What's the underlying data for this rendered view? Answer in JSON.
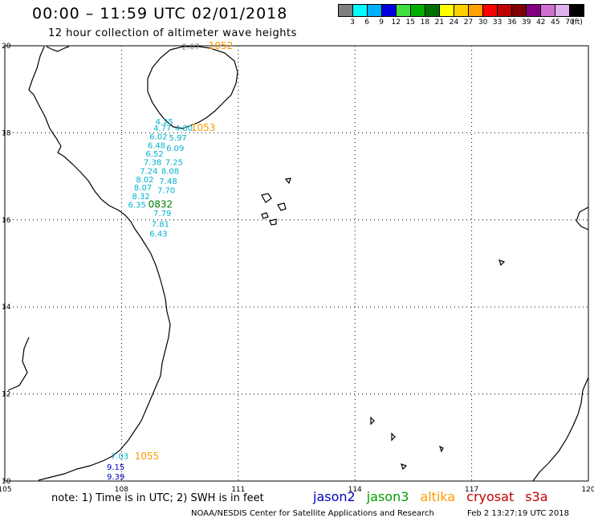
{
  "header": {
    "title": "00:00 – 11:59 UTC 02/01/2018",
    "subtitle": "12 hour collection of altimeter wave heights"
  },
  "legend": {
    "colors": [
      "#808080",
      "#00ffff",
      "#00b0ff",
      "#0000e0",
      "#40e040",
      "#00b000",
      "#007000",
      "#ffff00",
      "#ffd000",
      "#ffa000",
      "#ff0000",
      "#c00000",
      "#800000",
      "#800080",
      "#d070d0",
      "#e0b0f0",
      "#000000"
    ],
    "labels": [
      "3",
      "6",
      "9",
      "12",
      "15",
      "18",
      "21",
      "24",
      "27",
      "30",
      "33",
      "36",
      "39",
      "42",
      "45",
      "70",
      "(ft)"
    ]
  },
  "map": {
    "lon_ticks": [
      "105",
      "108",
      "111",
      "114",
      "117",
      "120"
    ],
    "lat_ticks": [
      "20",
      "18",
      "16",
      "14",
      "12",
      "10"
    ],
    "lon_range": [
      105,
      120
    ],
    "lat_range": [
      10,
      20
    ],
    "points": [
      {
        "t": "2.07",
        "lon": 109.78,
        "lat": 19.92,
        "color": "#808080"
      },
      {
        "t": "4.25",
        "lon": 109.1,
        "lat": 18.19,
        "color": "#00b0d0"
      },
      {
        "t": "4.77",
        "lon": 109.05,
        "lat": 18.04,
        "color": "#00b0d0"
      },
      {
        "t": "4.80",
        "lon": 109.6,
        "lat": 18.04,
        "color": "#00b0d0"
      },
      {
        "t": "6.02",
        "lon": 108.95,
        "lat": 17.85,
        "color": "#00b0d0"
      },
      {
        "t": "5.97",
        "lon": 109.45,
        "lat": 17.82,
        "color": "#00b0d0"
      },
      {
        "t": "6.48",
        "lon": 108.9,
        "lat": 17.65,
        "color": "#00b0d0"
      },
      {
        "t": "6.09",
        "lon": 109.38,
        "lat": 17.58,
        "color": "#00b0d0"
      },
      {
        "t": "6.52",
        "lon": 108.85,
        "lat": 17.45,
        "color": "#00b0d0"
      },
      {
        "t": "7.38",
        "lon": 108.8,
        "lat": 17.26,
        "color": "#00b0d0"
      },
      {
        "t": "7.25",
        "lon": 109.35,
        "lat": 17.26,
        "color": "#00b0d0"
      },
      {
        "t": "7.24",
        "lon": 108.7,
        "lat": 17.06,
        "color": "#00b0d0"
      },
      {
        "t": "8.08",
        "lon": 109.25,
        "lat": 17.06,
        "color": "#00b0d0"
      },
      {
        "t": "8.02",
        "lon": 108.6,
        "lat": 16.86,
        "color": "#00b0d0"
      },
      {
        "t": "7.48",
        "lon": 109.2,
        "lat": 16.83,
        "color": "#00b0d0"
      },
      {
        "t": "8.07",
        "lon": 108.55,
        "lat": 16.68,
        "color": "#00b0d0"
      },
      {
        "t": "7.70",
        "lon": 109.15,
        "lat": 16.61,
        "color": "#00b0d0"
      },
      {
        "t": "8.32",
        "lon": 108.5,
        "lat": 16.48,
        "color": "#00b0d0"
      },
      {
        "t": "7.79",
        "lon": 109.05,
        "lat": 16.09,
        "color": "#00b0d0"
      },
      {
        "t": "6.35",
        "lon": 108.4,
        "lat": 16.28,
        "color": "#00b0d0"
      },
      {
        "t": "7.81",
        "lon": 109.0,
        "lat": 15.84,
        "color": "#00b0d0"
      },
      {
        "t": "6.43",
        "lon": 108.95,
        "lat": 15.62,
        "color": "#00b0d0"
      },
      {
        "t": "7.03",
        "lon": 107.95,
        "lat": 10.51,
        "color": "#00b0d0"
      },
      {
        "t": "9.15",
        "lon": 107.85,
        "lat": 10.26,
        "color": "#0000c0"
      },
      {
        "t": "9.39",
        "lon": 107.85,
        "lat": 10.04,
        "color": "#0000c0"
      }
    ],
    "times": [
      {
        "t": "1052",
        "lon": 110.55,
        "lat": 19.93,
        "color": "#ff9900"
      },
      {
        "t": "1053",
        "lon": 110.1,
        "lat": 18.04,
        "color": "#ff9900"
      },
      {
        "t": "0832",
        "lon": 109.0,
        "lat": 16.28,
        "color": "#008000"
      },
      {
        "t": "1055",
        "lon": 108.65,
        "lat": 10.5,
        "color": "#ff9900"
      }
    ]
  },
  "footer": {
    "note": "note:  1) Time is in UTC;  2) SWH is in feet",
    "satellites": [
      {
        "name": "jason2",
        "color": "#0000c0"
      },
      {
        "name": "jason3",
        "color": "#00a000"
      },
      {
        "name": "altika",
        "color": "#ff9900"
      },
      {
        "name": "cryosat",
        "color": "#c00000"
      },
      {
        "name": "s3a",
        "color": "#c00000"
      }
    ],
    "credit": "NOAA/NESDIS Center for Satellite Applications and Research",
    "timestamp": "Feb  2 13:27:19 UTC 2018"
  }
}
